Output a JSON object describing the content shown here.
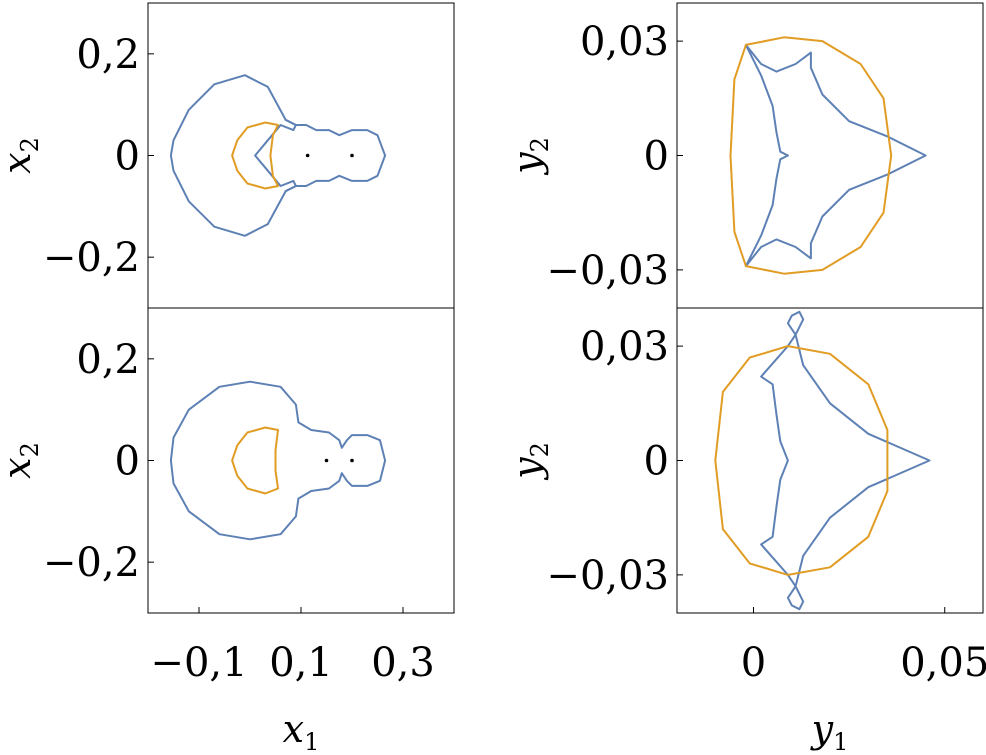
{
  "chart_data": [
    {
      "type": "line",
      "panel": "top-left",
      "xlabel": "x1",
      "ylabel": "x2",
      "xlim": [
        -0.2,
        0.4
      ],
      "ylim": [
        -0.3,
        0.3
      ],
      "xticks": [],
      "yticks": [
        {
          "value": 0.2,
          "label": "0,2"
        },
        {
          "value": 0,
          "label": "0"
        },
        {
          "value": -0.2,
          "label": "−0,2"
        }
      ],
      "colors": {
        "series1": "#5e81b5",
        "series2": "#e19c24"
      },
      "series": [
        {
          "values": [
            [
              0.07,
              0.07
            ],
            [
              0.035,
              0.135
            ],
            [
              -0.01,
              0.158
            ],
            [
              -0.07,
              0.14
            ],
            [
              -0.12,
              0.09
            ],
            [
              -0.15,
              0.03
            ],
            [
              -0.155,
              0.0
            ],
            [
              -0.15,
              -0.03
            ],
            [
              -0.12,
              -0.09
            ],
            [
              -0.07,
              -0.14
            ],
            [
              -0.01,
              -0.158
            ],
            [
              0.035,
              -0.135
            ],
            [
              0.07,
              -0.07
            ],
            [
              0.09,
              -0.06
            ],
            [
              0.085,
              -0.05
            ],
            [
              0.06,
              -0.06
            ],
            [
              0.035,
              -0.03
            ],
            [
              0.01,
              0.0
            ],
            [
              0.035,
              0.03
            ],
            [
              0.06,
              0.06
            ],
            [
              0.085,
              0.05
            ],
            [
              0.09,
              0.06
            ],
            [
              0.07,
              0.07
            ]
          ]
        },
        {
          "values": [
            [
              0.07,
              0.07
            ],
            [
              0.09,
              0.06
            ],
            [
              0.11,
              0.06
            ],
            [
              0.13,
              0.05
            ],
            [
              0.155,
              0.05
            ],
            [
              0.175,
              0.04
            ],
            [
              0.2,
              0.05
            ],
            [
              0.23,
              0.05
            ],
            [
              0.25,
              0.04
            ],
            [
              0.265,
              0.0
            ],
            [
              0.25,
              -0.04
            ],
            [
              0.23,
              -0.05
            ],
            [
              0.2,
              -0.05
            ],
            [
              0.175,
              -0.04
            ],
            [
              0.155,
              -0.05
            ],
            [
              0.13,
              -0.05
            ],
            [
              0.11,
              -0.06
            ],
            [
              0.09,
              -0.06
            ],
            [
              0.07,
              -0.07
            ]
          ]
        },
        {
          "values": [
            [
              0.055,
              0.06
            ],
            [
              0.03,
              0.065
            ],
            [
              -0.005,
              0.055
            ],
            [
              -0.025,
              0.03
            ],
            [
              -0.035,
              0.0
            ],
            [
              -0.025,
              -0.03
            ],
            [
              -0.005,
              -0.055
            ],
            [
              0.03,
              -0.065
            ],
            [
              0.055,
              -0.06
            ],
            [
              0.045,
              -0.04
            ],
            [
              0.04,
              0.0
            ],
            [
              0.045,
              0.04
            ],
            [
              0.055,
              0.06
            ]
          ]
        }
      ],
      "points": [
        [
          0.113,
          0.0
        ],
        [
          0.2,
          0.0
        ]
      ]
    },
    {
      "type": "line",
      "panel": "top-right",
      "xlabel": "y1",
      "ylabel": "y2",
      "xlim": [
        -0.02,
        0.06
      ],
      "ylim": [
        -0.04,
        0.04
      ],
      "xticks": [],
      "yticks": [
        {
          "value": 0.03,
          "label": "0,03"
        },
        {
          "value": 0,
          "label": "0"
        },
        {
          "value": -0.03,
          "label": "−0,03"
        }
      ],
      "series": [
        {
          "values": [
            [
              -0.002,
              0.029
            ],
            [
              0.002,
              0.024
            ],
            [
              0.006,
              0.022
            ],
            [
              0.011,
              0.024
            ],
            [
              0.015,
              0.027
            ],
            [
              0.015,
              0.023
            ],
            [
              0.018,
              0.016
            ],
            [
              0.025,
              0.009
            ],
            [
              0.035,
              0.005
            ],
            [
              0.045,
              0.0
            ],
            [
              0.035,
              -0.005
            ],
            [
              0.025,
              -0.009
            ],
            [
              0.018,
              -0.016
            ],
            [
              0.015,
              -0.023
            ],
            [
              0.015,
              -0.027
            ],
            [
              0.011,
              -0.024
            ],
            [
              0.006,
              -0.022
            ],
            [
              0.002,
              -0.024
            ],
            [
              -0.002,
              -0.029
            ],
            [
              0.002,
              -0.021
            ],
            [
              0.005,
              -0.013
            ],
            [
              0.006,
              -0.006
            ],
            [
              0.007,
              -0.001
            ],
            [
              0.009,
              0.0
            ],
            [
              0.007,
              0.001
            ],
            [
              0.006,
              0.006
            ],
            [
              0.005,
              0.013
            ],
            [
              0.002,
              0.021
            ],
            [
              -0.002,
              0.029
            ]
          ]
        },
        {
          "values": [
            [
              -0.002,
              0.029
            ],
            [
              0.008,
              0.031
            ],
            [
              0.018,
              0.03
            ],
            [
              0.028,
              0.024
            ],
            [
              0.034,
              0.015
            ],
            [
              0.036,
              0.0
            ],
            [
              0.034,
              -0.015
            ],
            [
              0.028,
              -0.024
            ],
            [
              0.018,
              -0.03
            ],
            [
              0.008,
              -0.031
            ],
            [
              -0.002,
              -0.029
            ],
            [
              -0.005,
              -0.02
            ],
            [
              -0.006,
              0.0
            ],
            [
              -0.005,
              0.02
            ],
            [
              -0.002,
              0.029
            ]
          ]
        }
      ]
    },
    {
      "type": "line",
      "panel": "bottom-left",
      "xlabel": "x1",
      "ylabel": "x2",
      "xlim": [
        -0.2,
        0.4
      ],
      "ylim": [
        -0.3,
        0.3
      ],
      "xticks": [
        {
          "value": -0.1,
          "label": "−0,1"
        },
        {
          "value": 0.1,
          "label": "0,1"
        },
        {
          "value": 0.3,
          "label": "0,3"
        }
      ],
      "yticks": [
        {
          "value": 0.2,
          "label": "0,2"
        },
        {
          "value": 0,
          "label": "0"
        },
        {
          "value": -0.2,
          "label": "−0,2"
        }
      ],
      "series": [
        {
          "values": [
            [
              0.095,
              0.075
            ],
            [
              0.09,
              0.11
            ],
            [
              0.06,
              0.145
            ],
            [
              0.0,
              0.155
            ],
            [
              -0.06,
              0.145
            ],
            [
              -0.12,
              0.1
            ],
            [
              -0.15,
              0.045
            ],
            [
              -0.155,
              0.0
            ],
            [
              -0.15,
              -0.045
            ],
            [
              -0.12,
              -0.1
            ],
            [
              -0.06,
              -0.145
            ],
            [
              0.0,
              -0.155
            ],
            [
              0.06,
              -0.145
            ],
            [
              0.09,
              -0.11
            ],
            [
              0.095,
              -0.075
            ],
            [
              0.12,
              -0.06
            ],
            [
              0.155,
              -0.055
            ],
            [
              0.175,
              -0.04
            ],
            [
              0.18,
              -0.025
            ],
            [
              0.19,
              -0.04
            ],
            [
              0.2,
              -0.05
            ],
            [
              0.23,
              -0.05
            ],
            [
              0.255,
              -0.04
            ],
            [
              0.265,
              0.0
            ],
            [
              0.255,
              0.04
            ],
            [
              0.23,
              0.05
            ],
            [
              0.2,
              0.05
            ],
            [
              0.19,
              0.04
            ],
            [
              0.18,
              0.025
            ],
            [
              0.175,
              0.04
            ],
            [
              0.155,
              0.055
            ],
            [
              0.12,
              0.06
            ],
            [
              0.095,
              0.075
            ]
          ]
        },
        {
          "values": [
            [
              0.055,
              0.06
            ],
            [
              0.03,
              0.065
            ],
            [
              -0.005,
              0.055
            ],
            [
              -0.025,
              0.03
            ],
            [
              -0.035,
              0.0
            ],
            [
              -0.025,
              -0.03
            ],
            [
              -0.005,
              -0.055
            ],
            [
              0.03,
              -0.065
            ],
            [
              0.055,
              -0.055
            ],
            [
              0.05,
              -0.02
            ],
            [
              0.05,
              0.02
            ],
            [
              0.055,
              0.06
            ]
          ]
        }
      ],
      "points": [
        [
          0.15,
          0.0
        ],
        [
          0.2,
          0.0
        ]
      ]
    },
    {
      "type": "line",
      "panel": "bottom-right",
      "xlabel": "y1",
      "ylabel": "y2",
      "xlim": [
        -0.02,
        0.06
      ],
      "ylim": [
        -0.04,
        0.04
      ],
      "xticks": [
        {
          "value": 0,
          "label": "0"
        },
        {
          "value": 0.05,
          "label": "0,05"
        }
      ],
      "yticks": [
        {
          "value": 0.03,
          "label": "0,03"
        },
        {
          "value": 0,
          "label": "0"
        },
        {
          "value": -0.03,
          "label": "−0,03"
        }
      ],
      "series": [
        {
          "values": [
            [
              0.012,
              0.039
            ],
            [
              0.01,
              0.038
            ],
            [
              0.009,
              0.036
            ],
            [
              0.011,
              0.033
            ],
            [
              0.013,
              0.025
            ],
            [
              0.02,
              0.015
            ],
            [
              0.03,
              0.007
            ],
            [
              0.046,
              0.0
            ],
            [
              0.03,
              -0.007
            ],
            [
              0.02,
              -0.015
            ],
            [
              0.013,
              -0.025
            ],
            [
              0.011,
              -0.033
            ],
            [
              0.009,
              -0.036
            ],
            [
              0.01,
              -0.038
            ],
            [
              0.012,
              -0.039
            ],
            [
              0.013,
              -0.037
            ],
            [
              0.011,
              -0.033
            ],
            [
              0.009,
              -0.03
            ],
            [
              0.002,
              -0.022
            ],
            [
              0.005,
              -0.02
            ],
            [
              0.006,
              -0.012
            ],
            [
              0.007,
              -0.005
            ],
            [
              0.009,
              0.0
            ],
            [
              0.007,
              0.005
            ],
            [
              0.006,
              0.012
            ],
            [
              0.005,
              0.02
            ],
            [
              0.002,
              0.022
            ],
            [
              0.009,
              0.03
            ],
            [
              0.011,
              0.033
            ],
            [
              0.013,
              0.037
            ],
            [
              0.012,
              0.039
            ]
          ]
        },
        {
          "values": [
            [
              0.009,
              0.03
            ],
            [
              0.02,
              0.028
            ],
            [
              0.03,
              0.02
            ],
            [
              0.035,
              0.008
            ],
            [
              0.035,
              -0.008
            ],
            [
              0.03,
              -0.02
            ],
            [
              0.02,
              -0.028
            ],
            [
              0.009,
              -0.03
            ],
            [
              -0.001,
              -0.027
            ],
            [
              -0.008,
              -0.018
            ],
            [
              -0.01,
              0.0
            ],
            [
              -0.008,
              0.018
            ],
            [
              -0.001,
              0.027
            ],
            [
              0.009,
              0.03
            ]
          ]
        }
      ]
    }
  ]
}
